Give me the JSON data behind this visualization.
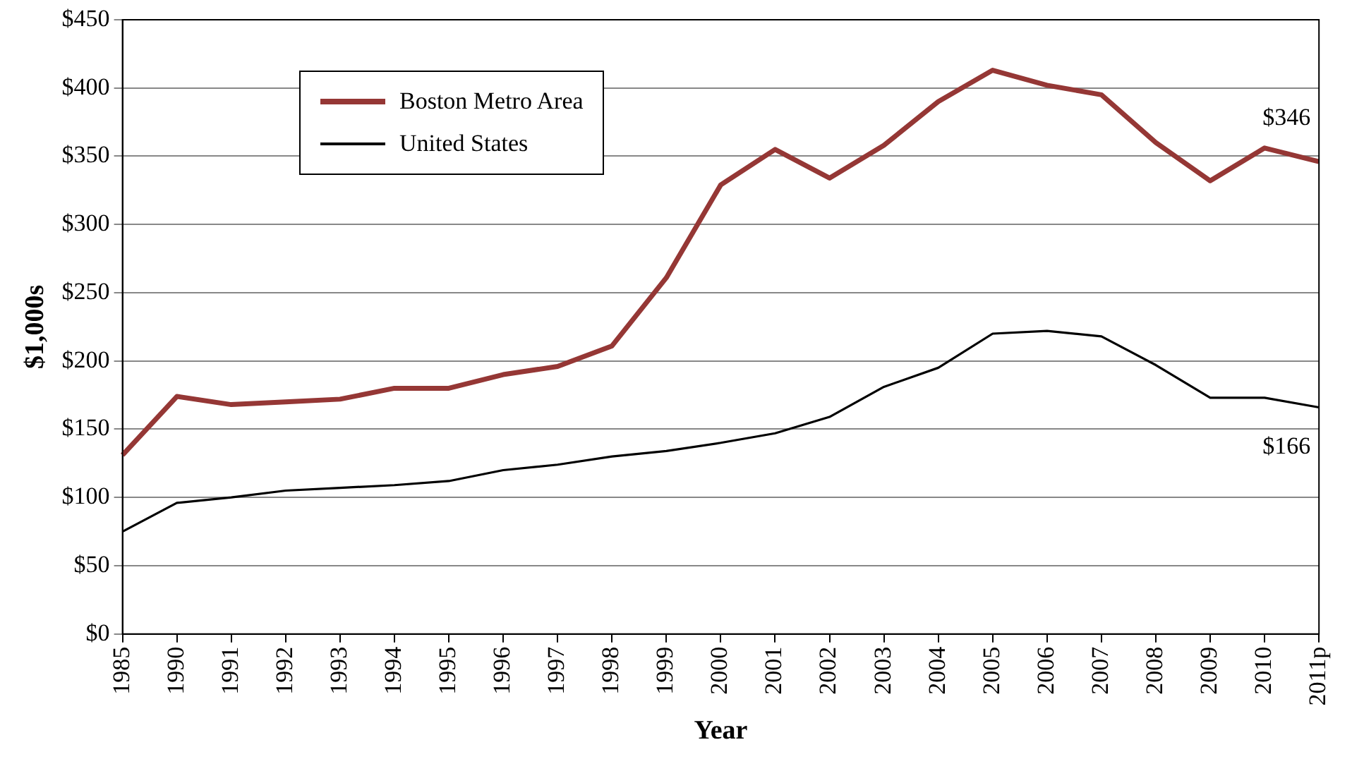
{
  "chart_data": {
    "type": "line",
    "xlabel": "Year",
    "ylabel": "$1,000s",
    "categories": [
      "1985",
      "1990",
      "1991",
      "1992",
      "1993",
      "1994",
      "1995",
      "1996",
      "1997",
      "1998",
      "1999",
      "2000",
      "2001",
      "2002",
      "2003",
      "2004",
      "2005",
      "2006",
      "2007",
      "2008",
      "2009",
      "2010",
      "2011p"
    ],
    "series": [
      {
        "name": "Boston Metro Area",
        "color": "#953735",
        "values": [
          131,
          174,
          168,
          170,
          172,
          180,
          180,
          190,
          196,
          211,
          261,
          329,
          355,
          334,
          358,
          390,
          413,
          402,
          395,
          360,
          332,
          356,
          346
        ]
      },
      {
        "name": "United States",
        "color": "#000000",
        "values": [
          75,
          96,
          100,
          105,
          107,
          109,
          112,
          120,
          124,
          130,
          134,
          140,
          147,
          159,
          181,
          195,
          220,
          222,
          218,
          197,
          173,
          173,
          166
        ]
      }
    ],
    "ylim": [
      0,
      450
    ],
    "yticks": [
      {
        "value": 0,
        "label": "$0"
      },
      {
        "value": 50,
        "label": "$50"
      },
      {
        "value": 100,
        "label": "$100"
      },
      {
        "value": 150,
        "label": "$150"
      },
      {
        "value": 200,
        "label": "$200"
      },
      {
        "value": 250,
        "label": "$250"
      },
      {
        "value": 300,
        "label": "$300"
      },
      {
        "value": 350,
        "label": "$350"
      },
      {
        "value": 400,
        "label": "$400"
      },
      {
        "value": 450,
        "label": "$450"
      }
    ],
    "annotations": [
      {
        "text": "$346",
        "x": "2011p",
        "y": 346
      },
      {
        "text": "$166",
        "x": "2011p",
        "y": 166
      }
    ],
    "grid": "y",
    "legend": "top left",
    "marker": "none",
    "line_style": "solid"
  }
}
